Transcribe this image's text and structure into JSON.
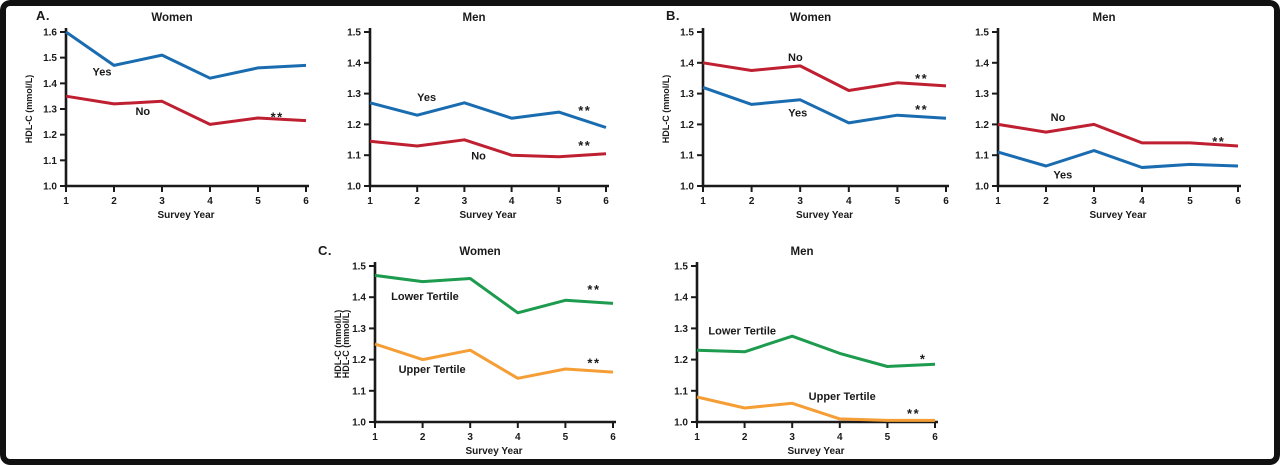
{
  "figure": {
    "background": "#ffffff",
    "frame_color": "#111111",
    "panel_labels": [
      {
        "id": "A",
        "text": "A."
      },
      {
        "id": "B",
        "text": "B."
      },
      {
        "id": "C",
        "text": "C."
      }
    ]
  },
  "colors": {
    "yes_blue": "#1a6cb0",
    "no_red": "#bf2031",
    "lower_tertile_green": "#1d9b4e",
    "upper_tertile_orange": "#f59e35",
    "axis_black": "#1a1a1a"
  },
  "chart_data": [
    {
      "id": "a-women",
      "panel": "A",
      "type": "line",
      "title": "Women",
      "xlabel": "Survey Year",
      "ylabel": "HDL-C (mmol/L)",
      "x": [
        1,
        2,
        3,
        4,
        5,
        6
      ],
      "xlim": [
        1,
        6
      ],
      "ylim": [
        1.0,
        1.6
      ],
      "ytick_step": 0.1,
      "series": [
        {
          "name": "Yes",
          "color_key": "yes_blue",
          "values": [
            1.6,
            1.47,
            1.51,
            1.42,
            1.46,
            1.47
          ],
          "label": {
            "text": "Yes",
            "x": 1.75,
            "y": 1.445
          }
        },
        {
          "name": "No",
          "color_key": "no_red",
          "values": [
            1.35,
            1.32,
            1.33,
            1.24,
            1.265,
            1.255
          ],
          "label": {
            "text": "No",
            "x": 2.6,
            "y": 1.29
          }
        }
      ],
      "annotations": [
        {
          "text": "**",
          "x": 5.4,
          "y": 1.278
        }
      ]
    },
    {
      "id": "a-men",
      "panel": "A",
      "type": "line",
      "title": "Men",
      "xlabel": "Survey Year",
      "x": [
        1,
        2,
        3,
        4,
        5,
        6
      ],
      "xlim": [
        1,
        6
      ],
      "ylim": [
        1.0,
        1.5
      ],
      "ytick_step": 0.1,
      "series": [
        {
          "name": "Yes",
          "color_key": "yes_blue",
          "values": [
            1.27,
            1.23,
            1.27,
            1.22,
            1.24,
            1.19
          ],
          "label": {
            "text": "Yes",
            "x": 2.2,
            "y": 1.287
          }
        },
        {
          "name": "No",
          "color_key": "no_red",
          "values": [
            1.145,
            1.13,
            1.15,
            1.1,
            1.095,
            1.105
          ],
          "label": {
            "text": "No",
            "x": 3.3,
            "y": 1.098
          }
        }
      ],
      "annotations": [
        {
          "text": "**",
          "x": 5.55,
          "y": 1.253
        },
        {
          "text": "**",
          "x": 5.55,
          "y": 1.14
        }
      ]
    },
    {
      "id": "b-women",
      "panel": "B",
      "type": "line",
      "title": "Women",
      "xlabel": "Survey Year",
      "ylabel": "HDL-C (mmol/L)",
      "x": [
        1,
        2,
        3,
        4,
        5,
        6
      ],
      "xlim": [
        1,
        6
      ],
      "ylim": [
        1.0,
        1.5
      ],
      "ytick_step": 0.1,
      "series": [
        {
          "name": "No",
          "color_key": "no_red",
          "values": [
            1.4,
            1.375,
            1.39,
            1.31,
            1.335,
            1.325
          ],
          "label": {
            "text": "No",
            "x": 2.9,
            "y": 1.418
          }
        },
        {
          "name": "Yes",
          "color_key": "yes_blue",
          "values": [
            1.32,
            1.265,
            1.28,
            1.205,
            1.23,
            1.22
          ],
          "label": {
            "text": "Yes",
            "x": 2.95,
            "y": 1.237
          }
        }
      ],
      "annotations": [
        {
          "text": "**",
          "x": 5.5,
          "y": 1.357
        },
        {
          "text": "**",
          "x": 5.5,
          "y": 1.257
        }
      ]
    },
    {
      "id": "b-men",
      "panel": "B",
      "type": "line",
      "title": "Men",
      "xlabel": "Survey Year",
      "x": [
        1,
        2,
        3,
        4,
        5,
        6
      ],
      "xlim": [
        1,
        6
      ],
      "ylim": [
        1.0,
        1.5
      ],
      "ytick_step": 0.1,
      "series": [
        {
          "name": "No",
          "color_key": "no_red",
          "values": [
            1.2,
            1.175,
            1.2,
            1.14,
            1.14,
            1.13
          ],
          "label": {
            "text": "No",
            "x": 2.25,
            "y": 1.222
          }
        },
        {
          "name": "Yes",
          "color_key": "yes_blue",
          "values": [
            1.11,
            1.065,
            1.115,
            1.06,
            1.07,
            1.065
          ],
          "label": {
            "text": "Yes",
            "x": 2.35,
            "y": 1.036
          }
        }
      ],
      "annotations": [
        {
          "text": "**",
          "x": 5.6,
          "y": 1.152
        }
      ]
    },
    {
      "id": "c-women",
      "panel": "C",
      "type": "line",
      "title": "Women",
      "xlabel": "Survey Year",
      "ylabel": "HDL-C (mmol/L)",
      "ylabel_repeat": 2,
      "x": [
        1,
        2,
        3,
        4,
        5,
        6
      ],
      "xlim": [
        1,
        6
      ],
      "ylim": [
        1.0,
        1.5
      ],
      "ytick_step": 0.1,
      "series": [
        {
          "name": "Lower Tertile",
          "color_key": "lower_tertile_green",
          "values": [
            1.47,
            1.45,
            1.46,
            1.35,
            1.39,
            1.38
          ],
          "label": {
            "text": "Lower Tertile",
            "x": 2.05,
            "y": 1.402
          }
        },
        {
          "name": "Upper Tertile",
          "color_key": "upper_tertile_orange",
          "values": [
            1.25,
            1.2,
            1.23,
            1.14,
            1.17,
            1.16
          ],
          "label": {
            "text": "Upper Tertile",
            "x": 2.2,
            "y": 1.168
          }
        }
      ],
      "annotations": [
        {
          "text": "**",
          "x": 5.6,
          "y": 1.432
        },
        {
          "text": "**",
          "x": 5.6,
          "y": 1.197
        }
      ]
    },
    {
      "id": "c-men",
      "panel": "C",
      "type": "line",
      "title": "Men",
      "xlabel": "Survey Year",
      "x": [
        1,
        2,
        3,
        4,
        5,
        6
      ],
      "xlim": [
        1,
        6
      ],
      "ylim": [
        1.0,
        1.5
      ],
      "ytick_step": 0.1,
      "series": [
        {
          "name": "Lower Tertile",
          "color_key": "lower_tertile_green",
          "values": [
            1.23,
            1.225,
            1.275,
            1.22,
            1.178,
            1.185
          ],
          "label": {
            "text": "Lower Tertile",
            "x": 1.95,
            "y": 1.292
          }
        },
        {
          "name": "Upper Tertile",
          "color_key": "upper_tertile_orange",
          "values": [
            1.08,
            1.045,
            1.06,
            1.01,
            1.005,
            1.005
          ],
          "label": {
            "text": "Upper Tertile",
            "x": 4.05,
            "y": 1.082
          }
        }
      ],
      "annotations": [
        {
          "text": "*",
          "x": 5.75,
          "y": 1.21
        },
        {
          "text": "**",
          "x": 5.55,
          "y": 1.035
        }
      ]
    }
  ]
}
